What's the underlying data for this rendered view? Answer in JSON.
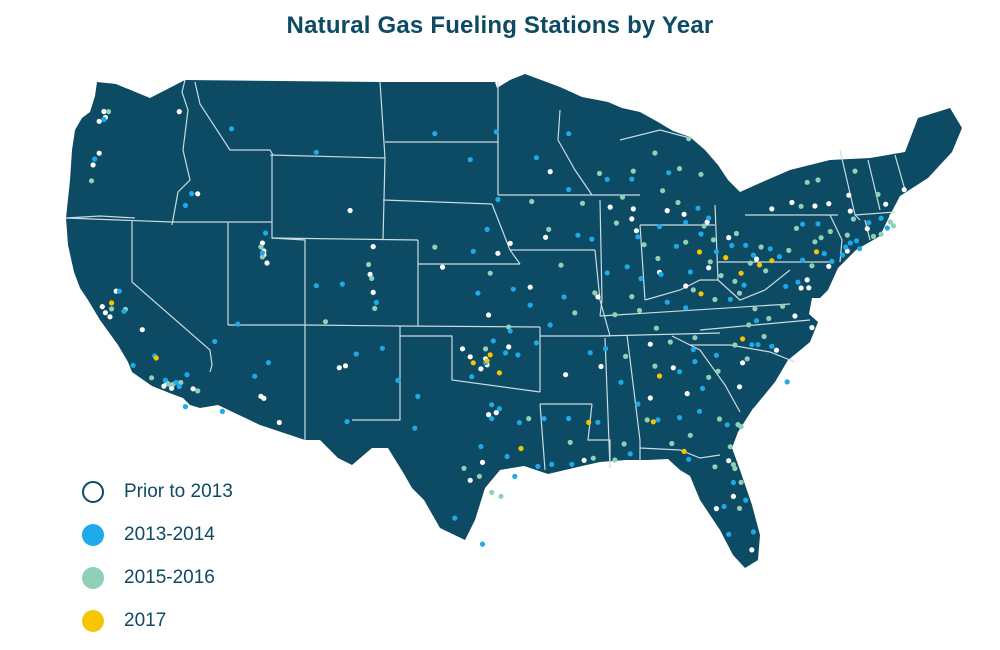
{
  "title": "Natural Gas Fueling Stations by Year",
  "colors": {
    "land": "#0d4a63",
    "border": "#c9dbe3",
    "prior_2013": "#ffffff",
    "y2013_2014": "#1ea9ea",
    "y2015_2016": "#8fd0b6",
    "y2017": "#f7c600"
  },
  "legend": [
    {
      "label": "Prior to 2013",
      "series": "prior_2013"
    },
    {
      "label": "2013-2014",
      "series": "y2013_2014"
    },
    {
      "label": "2015-2016",
      "series": "y2015_2016"
    },
    {
      "label": "2017",
      "series": "y2017"
    }
  ],
  "stations": {
    "prior_2013": [
      [
        -122.3,
        47.6
      ],
      [
        -122.2,
        47.3
      ],
      [
        -122.6,
        47.1
      ],
      [
        -117.4,
        47.7
      ],
      [
        -122.6,
        45.5
      ],
      [
        -123.0,
        44.9
      ],
      [
        -116.2,
        43.6
      ],
      [
        -111.9,
        40.8
      ],
      [
        -111.9,
        40.6
      ],
      [
        -112.0,
        41.2
      ],
      [
        -111.7,
        40.2
      ],
      [
        -104.8,
        41.1
      ],
      [
        -106.3,
        42.9
      ],
      [
        -122.4,
        37.8
      ],
      [
        -122.2,
        37.5
      ],
      [
        -121.9,
        37.3
      ],
      [
        -121.5,
        38.6
      ],
      [
        -119.8,
        36.7
      ],
      [
        -118.2,
        34.05
      ],
      [
        -118.4,
        33.9
      ],
      [
        -117.9,
        33.8
      ],
      [
        -117.2,
        32.7
      ],
      [
        -116.5,
        33.8
      ],
      [
        -112.1,
        33.5
      ],
      [
        -111.9,
        33.4
      ],
      [
        -110.9,
        32.2
      ],
      [
        -106.6,
        35.1
      ],
      [
        -105.0,
        39.7
      ],
      [
        -104.8,
        38.8
      ],
      [
        -97.5,
        35.5
      ],
      [
        -97.4,
        35.2
      ],
      [
        -96.0,
        36.1
      ],
      [
        -97.8,
        35.0
      ],
      [
        -98.5,
        35.6
      ],
      [
        -99.0,
        36.0
      ],
      [
        -96.8,
        32.8
      ],
      [
        -97.3,
        32.7
      ],
      [
        -95.4,
        29.8
      ],
      [
        -98.5,
        29.4
      ],
      [
        -97.7,
        30.3
      ],
      [
        -90.1,
        29.95
      ],
      [
        -91.1,
        30.4
      ],
      [
        -86.8,
        33.5
      ],
      [
        -84.4,
        33.7
      ],
      [
        -81.0,
        34.0
      ],
      [
        -80.8,
        35.2
      ],
      [
        -78.6,
        35.8
      ],
      [
        -77.4,
        37.5
      ],
      [
        -76.3,
        36.9
      ],
      [
        -77.0,
        38.9
      ],
      [
        -76.6,
        39.3
      ],
      [
        -75.2,
        39.95
      ],
      [
        -74.0,
        40.7
      ],
      [
        -73.8,
        42.7
      ],
      [
        -71.1,
        42.4
      ],
      [
        -72.7,
        41.8
      ],
      [
        -73.9,
        43.5
      ],
      [
        -70.3,
        43.7
      ],
      [
        -71.5,
        43.0
      ],
      [
        -75.2,
        43.1
      ],
      [
        -76.1,
        43.0
      ],
      [
        -77.6,
        43.2
      ],
      [
        -78.9,
        42.9
      ],
      [
        -79.9,
        40.4
      ],
      [
        -81.7,
        41.5
      ],
      [
        -83.0,
        40.0
      ],
      [
        -84.5,
        39.1
      ],
      [
        -86.2,
        39.8
      ],
      [
        -87.7,
        41.9
      ],
      [
        -88.0,
        42.5
      ],
      [
        -89.4,
        43.1
      ],
      [
        -93.3,
        44.9
      ],
      [
        -93.6,
        41.6
      ],
      [
        -90.2,
        38.6
      ],
      [
        -94.6,
        39.1
      ],
      [
        -86.8,
        36.2
      ],
      [
        -85.3,
        35.0
      ],
      [
        -90.0,
        35.1
      ],
      [
        -92.3,
        34.7
      ],
      [
        -97.3,
        37.7
      ],
      [
        -96.7,
        40.8
      ],
      [
        -95.9,
        41.3
      ],
      [
        -100.3,
        40.1
      ],
      [
        -107.0,
        35.0
      ],
      [
        -84.6,
        42.7
      ],
      [
        -83.1,
        42.3
      ],
      [
        -85.7,
        42.9
      ],
      [
        -87.9,
        43.0
      ],
      [
        -76.5,
        38.9
      ],
      [
        -80.0,
        32.8
      ],
      [
        -81.7,
        30.3
      ],
      [
        -82.5,
        27.9
      ],
      [
        -80.2,
        25.8
      ],
      [
        -81.4,
        28.5
      ],
      [
        -97.4,
        27.8
      ]
    ],
    "y2013_2014": [
      [
        -122.3,
        47.2
      ],
      [
        -122.9,
        45.2
      ],
      [
        -117.0,
        43.0
      ],
      [
        -116.6,
        43.6
      ],
      [
        -112.0,
        40.7
      ],
      [
        -111.8,
        41.7
      ],
      [
        -106.8,
        39.2
      ],
      [
        -104.6,
        38.3
      ],
      [
        -108.5,
        39.1
      ],
      [
        -105.9,
        35.7
      ],
      [
        -106.5,
        32.3
      ],
      [
        -103.2,
        34.4
      ],
      [
        -104.2,
        36.0
      ],
      [
        -121.3,
        38.6
      ],
      [
        -121.0,
        37.6
      ],
      [
        -120.4,
        34.9
      ],
      [
        -119.0,
        35.4
      ],
      [
        -118.3,
        34.2
      ],
      [
        -117.6,
        34.1
      ],
      [
        -117.0,
        32.9
      ],
      [
        -117.4,
        33.9
      ],
      [
        -116.9,
        34.5
      ],
      [
        -114.6,
        32.7
      ],
      [
        -112.5,
        34.5
      ],
      [
        -111.6,
        35.2
      ],
      [
        -113.6,
        37.1
      ],
      [
        -115.1,
        36.2
      ],
      [
        -114.0,
        46.9
      ],
      [
        -108.5,
        45.8
      ],
      [
        -100.8,
        46.8
      ],
      [
        -96.8,
        46.9
      ],
      [
        -98.5,
        45.5
      ],
      [
        -96.7,
        43.5
      ],
      [
        -97.4,
        42.0
      ],
      [
        -98.3,
        40.9
      ],
      [
        -95.7,
        39.0
      ],
      [
        -94.6,
        38.2
      ],
      [
        -98.0,
        38.8
      ],
      [
        -97.5,
        35.3
      ],
      [
        -97.0,
        36.4
      ],
      [
        -96.2,
        35.8
      ],
      [
        -95.9,
        36.9
      ],
      [
        -95.4,
        35.7
      ],
      [
        -98.4,
        34.6
      ],
      [
        -97.1,
        33.2
      ],
      [
        -96.6,
        33.0
      ],
      [
        -95.3,
        32.3
      ],
      [
        -97.8,
        31.1
      ],
      [
        -96.1,
        30.6
      ],
      [
        -95.6,
        29.6
      ],
      [
        -94.1,
        30.1
      ],
      [
        -97.1,
        32.5
      ],
      [
        -101.9,
        33.6
      ],
      [
        -102.1,
        32.0
      ],
      [
        -97.7,
        26.2
      ],
      [
        -99.5,
        27.5
      ],
      [
        -93.7,
        32.5
      ],
      [
        -92.1,
        32.5
      ],
      [
        -91.9,
        30.2
      ],
      [
        -93.2,
        30.2
      ],
      [
        -90.2,
        32.3
      ],
      [
        -88.7,
        34.3
      ],
      [
        -89.7,
        36.0
      ],
      [
        -90.7,
        35.8
      ],
      [
        -94.2,
        36.3
      ],
      [
        -92.4,
        38.6
      ],
      [
        -93.3,
        37.2
      ],
      [
        -91.5,
        41.7
      ],
      [
        -90.6,
        41.5
      ],
      [
        -92.1,
        44.0
      ],
      [
        -94.2,
        45.6
      ],
      [
        -92.1,
        46.8
      ],
      [
        -89.6,
        44.5
      ],
      [
        -88.0,
        44.5
      ],
      [
        -87.6,
        41.6
      ],
      [
        -88.3,
        40.1
      ],
      [
        -89.6,
        39.8
      ],
      [
        -87.4,
        39.5
      ],
      [
        -85.1,
        41.1
      ],
      [
        -86.1,
        39.7
      ],
      [
        -85.7,
        38.3
      ],
      [
        -84.5,
        38.0
      ],
      [
        -83.0,
        42.5
      ],
      [
        -83.7,
        43.0
      ],
      [
        -84.5,
        42.3
      ],
      [
        -85.6,
        44.8
      ],
      [
        -86.2,
        42.1
      ],
      [
        -83.5,
        41.7
      ],
      [
        -82.5,
        40.8
      ],
      [
        -84.2,
        39.8
      ],
      [
        -81.5,
        41.1
      ],
      [
        -80.6,
        41.1
      ],
      [
        -80.1,
        40.6
      ],
      [
        -78.4,
        40.5
      ],
      [
        -79.0,
        40.9
      ],
      [
        -76.9,
        40.3
      ],
      [
        -75.5,
        40.6
      ],
      [
        -75.0,
        40.2
      ],
      [
        -74.3,
        40.5
      ],
      [
        -74.1,
        40.9
      ],
      [
        -73.2,
        40.8
      ],
      [
        -73.4,
        41.2
      ],
      [
        -71.4,
        41.8
      ],
      [
        -71.8,
        42.3
      ],
      [
        -72.6,
        42.1
      ],
      [
        -76.9,
        42.1
      ],
      [
        -75.9,
        42.1
      ],
      [
        -73.8,
        41.1
      ],
      [
        -79.8,
        36.1
      ],
      [
        -80.2,
        36.1
      ],
      [
        -78.9,
        36.0
      ],
      [
        -77.9,
        34.2
      ],
      [
        -82.5,
        35.6
      ],
      [
        -79.9,
        37.3
      ],
      [
        -81.6,
        38.4
      ],
      [
        -80.7,
        39.1
      ],
      [
        -84.0,
        35.9
      ],
      [
        -83.9,
        35.3
      ],
      [
        -84.9,
        34.8
      ],
      [
        -83.4,
        33.95
      ],
      [
        -81.8,
        32.1
      ],
      [
        -83.6,
        32.8
      ],
      [
        -84.9,
        32.5
      ],
      [
        -86.3,
        32.4
      ],
      [
        -87.6,
        33.2
      ],
      [
        -88.1,
        30.7
      ],
      [
        -84.3,
        30.4
      ],
      [
        -81.4,
        29.2
      ],
      [
        -80.6,
        28.3
      ],
      [
        -81.7,
        26.6
      ],
      [
        -80.1,
        26.7
      ],
      [
        -82.0,
        28.0
      ],
      [
        -78.0,
        39.0
      ],
      [
        -77.2,
        39.2
      ]
    ],
    "y2015_2016": [
      [
        -122.0,
        47.6
      ],
      [
        -123.1,
        44.1
      ],
      [
        -112.0,
        40.5
      ],
      [
        -112.1,
        41.0
      ],
      [
        -105.1,
        40.2
      ],
      [
        -104.9,
        39.5
      ],
      [
        -104.7,
        38.0
      ],
      [
        -107.9,
        37.3
      ],
      [
        -121.8,
        37.7
      ],
      [
        -120.9,
        37.7
      ],
      [
        -119.2,
        34.3
      ],
      [
        -118.1,
        34.0
      ],
      [
        -117.8,
        34.0
      ],
      [
        -117.3,
        34.1
      ],
      [
        -116.2,
        33.7
      ],
      [
        -100.8,
        41.1
      ],
      [
        -97.2,
        39.8
      ],
      [
        -96.0,
        37.1
      ],
      [
        -97.5,
        36.0
      ],
      [
        -94.7,
        32.5
      ],
      [
        -98.9,
        30.0
      ],
      [
        -97.9,
        29.6
      ],
      [
        -97.1,
        28.8
      ],
      [
        -96.5,
        28.6
      ],
      [
        -92.0,
        31.3
      ],
      [
        -90.5,
        30.5
      ],
      [
        -89.1,
        30.4
      ],
      [
        -88.5,
        31.2
      ],
      [
        -87.0,
        32.4
      ],
      [
        -85.4,
        31.2
      ],
      [
        -84.2,
        31.6
      ],
      [
        -82.3,
        32.4
      ],
      [
        -81.1,
        32.1
      ],
      [
        -80.9,
        32.0
      ],
      [
        -81.6,
        31.0
      ],
      [
        -81.4,
        30.1
      ],
      [
        -81.3,
        29.9
      ],
      [
        -80.9,
        29.2
      ],
      [
        -81.0,
        27.9
      ],
      [
        -82.6,
        30.0
      ],
      [
        -83.0,
        34.5
      ],
      [
        -82.4,
        34.8
      ],
      [
        -80.5,
        35.4
      ],
      [
        -81.3,
        36.1
      ],
      [
        -79.4,
        36.5
      ],
      [
        -79.1,
        37.4
      ],
      [
        -78.2,
        38.0
      ],
      [
        -80.4,
        37.1
      ],
      [
        -80.0,
        37.9
      ],
      [
        -81.0,
        38.7
      ],
      [
        -82.6,
        38.4
      ],
      [
        -81.3,
        39.3
      ],
      [
        -80.3,
        40.2
      ],
      [
        -82.9,
        40.3
      ],
      [
        -84.5,
        41.3
      ],
      [
        -82.7,
        41.4
      ],
      [
        -81.2,
        41.7
      ],
      [
        -79.6,
        41.0
      ],
      [
        -79.3,
        39.8
      ],
      [
        -77.8,
        40.8
      ],
      [
        -76.3,
        40.0
      ],
      [
        -76.1,
        41.2
      ],
      [
        -75.7,
        41.4
      ],
      [
        -77.3,
        41.9
      ],
      [
        -75.1,
        41.7
      ],
      [
        -74.0,
        41.5
      ],
      [
        -73.6,
        42.3
      ],
      [
        -72.3,
        41.4
      ],
      [
        -71.8,
        41.5
      ],
      [
        -71.0,
        41.9
      ],
      [
        -71.2,
        42.1
      ],
      [
        -72.0,
        43.5
      ],
      [
        -73.5,
        44.7
      ],
      [
        -76.6,
        44.2
      ],
      [
        -75.9,
        44.3
      ],
      [
        -77.0,
        43.0
      ],
      [
        -86.0,
        43.9
      ],
      [
        -84.9,
        45.0
      ],
      [
        -83.5,
        44.7
      ],
      [
        -87.9,
        44.9
      ],
      [
        -88.6,
        43.6
      ],
      [
        -89.0,
        42.3
      ],
      [
        -87.2,
        41.2
      ],
      [
        -86.3,
        40.5
      ],
      [
        -88.0,
        38.6
      ],
      [
        -89.1,
        37.7
      ],
      [
        -87.5,
        37.9
      ],
      [
        -86.4,
        37.0
      ],
      [
        -85.5,
        36.3
      ],
      [
        -86.5,
        35.1
      ],
      [
        -88.4,
        35.6
      ],
      [
        -90.4,
        38.8
      ],
      [
        -91.7,
        37.8
      ],
      [
        -92.6,
        40.2
      ],
      [
        -93.4,
        42.0
      ],
      [
        -94.5,
        43.4
      ],
      [
        -91.2,
        43.3
      ],
      [
        -90.1,
        44.8
      ],
      [
        -86.5,
        45.8
      ],
      [
        -84.3,
        46.5
      ],
      [
        -85.0,
        43.3
      ],
      [
        -83.3,
        42.1
      ],
      [
        -82.2,
        39.6
      ],
      [
        -83.9,
        36.5
      ],
      [
        -84.0,
        38.9
      ]
    ],
    "y2017": [
      [
        -121.8,
        38.0
      ],
      [
        -118.9,
        35.3
      ],
      [
        -97.4,
        35.4
      ],
      [
        -97.2,
        35.7
      ],
      [
        -98.3,
        35.3
      ],
      [
        -96.6,
        34.8
      ],
      [
        -95.2,
        31.0
      ],
      [
        -90.8,
        32.3
      ],
      [
        -86.6,
        32.3
      ],
      [
        -84.6,
        30.8
      ],
      [
        -83.5,
        38.7
      ],
      [
        -80.8,
        36.4
      ],
      [
        -83.6,
        40.8
      ],
      [
        -81.9,
        40.5
      ],
      [
        -80.9,
        39.7
      ],
      [
        -79.7,
        40.1
      ],
      [
        -78.9,
        40.3
      ],
      [
        -76.0,
        40.7
      ],
      [
        -86.2,
        34.6
      ]
    ]
  }
}
